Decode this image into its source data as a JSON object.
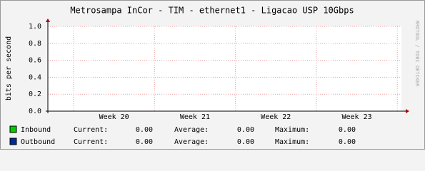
{
  "chart_data": {
    "type": "line",
    "title": "Metrosampa InCor - TIM - ethernet1 - Ligacao USP 10Gbps",
    "y_label": "bits per second",
    "watermark": "RRDTOOL / TOBI OETIKER",
    "categories": [
      "Week 20",
      "Week 21",
      "Week 22",
      "Week 23"
    ],
    "ylim": [
      0,
      1
    ],
    "yticks": [
      {
        "value": 0,
        "label": "0.0"
      },
      0.2,
      0.4,
      0.6,
      0.8,
      {
        "value": 1,
        "label": "1.0"
      }
    ],
    "grid": true,
    "stat_labels": [
      "Current:",
      "Average:",
      "Maximum:"
    ],
    "series": [
      {
        "name": "Inbound",
        "color": "#00cc00",
        "stats": [
          "0.00",
          "0.00",
          "0.00"
        ]
      },
      {
        "name": "Outbound",
        "color": "#002a97",
        "stats": [
          "0.00",
          "0.00",
          "0.00"
        ]
      }
    ]
  }
}
